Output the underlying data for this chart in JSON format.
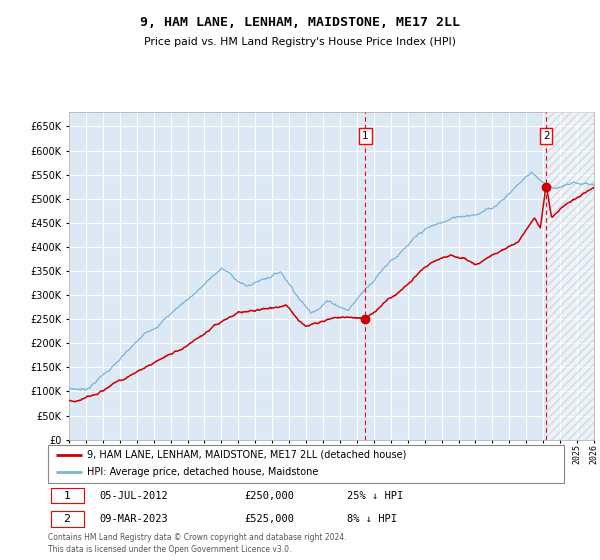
{
  "title": "9, HAM LANE, LENHAM, MAIDSTONE, ME17 2LL",
  "subtitle": "Price paid vs. HM Land Registry's House Price Index (HPI)",
  "plot_bg_color": "#dce9f5",
  "hpi_color": "#7ab4d8",
  "price_color": "#cc0000",
  "ylim": [
    0,
    680000
  ],
  "yticks": [
    0,
    50000,
    100000,
    150000,
    200000,
    250000,
    300000,
    350000,
    400000,
    450000,
    500000,
    550000,
    600000,
    650000
  ],
  "sale1_date": 2012.5,
  "sale1_price": 250000,
  "sale1_label": "05-JUL-2012",
  "sale1_text": "£250,000",
  "sale1_hpi_pct": "25% ↓ HPI",
  "sale2_date": 2023.17,
  "sale2_price": 525000,
  "sale2_label": "09-MAR-2023",
  "sale2_text": "£525,000",
  "sale2_hpi_pct": "8% ↓ HPI",
  "legend_line1": "9, HAM LANE, LENHAM, MAIDSTONE, ME17 2LL (detached house)",
  "legend_line2": "HPI: Average price, detached house, Maidstone",
  "footer": "Contains HM Land Registry data © Crown copyright and database right 2024.\nThis data is licensed under the Open Government Licence v3.0.",
  "xmin": 1995,
  "xmax": 2026,
  "hatch_after": 2023.17
}
